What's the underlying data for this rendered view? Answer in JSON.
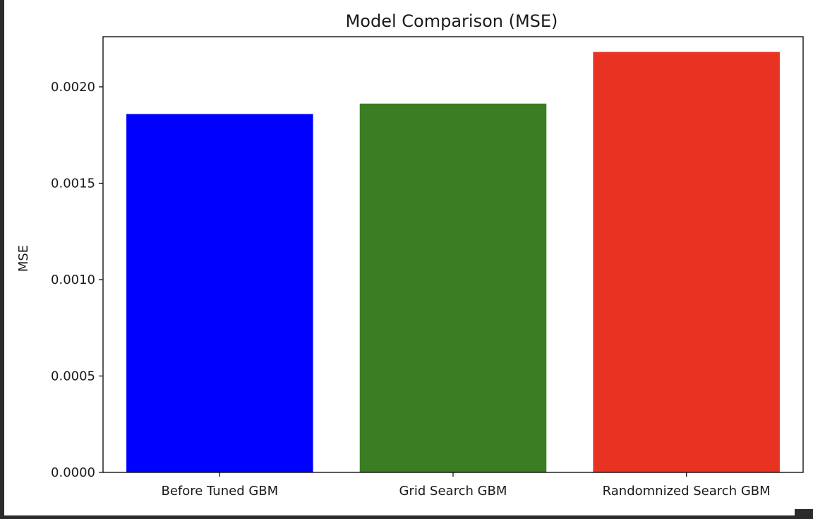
{
  "chart_data": {
    "type": "bar",
    "title": "Model Comparison (MSE)",
    "xlabel": "",
    "ylabel": "MSE",
    "categories": [
      "Before Tuned GBM",
      "Grid Search GBM",
      "Randomnized Search GBM"
    ],
    "values": [
      0.001859,
      0.001913,
      0.002181
    ],
    "colors": [
      "#0000ff",
      "#3a7d22",
      "#e83323"
    ],
    "ylim": [
      0,
      0.00226
    ],
    "yticks": [
      0.0,
      0.0005,
      0.001,
      0.0015,
      0.002
    ],
    "ytick_labels": [
      "0.0000",
      "0.0005",
      "0.0010",
      "0.0015",
      "0.0020"
    ],
    "grid": false,
    "legend": "none"
  }
}
